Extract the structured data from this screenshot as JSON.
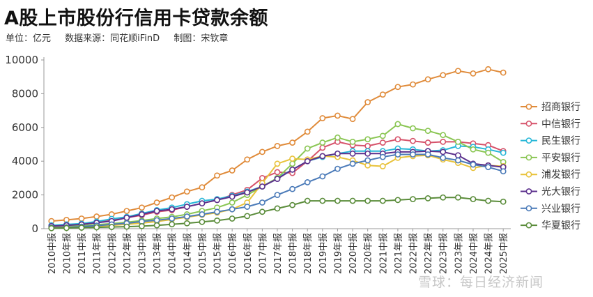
{
  "header": {
    "title": "A股上市股份行信用卡贷款余额",
    "unit": "单位：亿元",
    "source": "数据来源：同花顺iFinD",
    "author": "制图：宋钦章"
  },
  "watermark": "雪球：每日经济新闻",
  "chart_data": {
    "type": "line",
    "title": "A股上市股份行信用卡贷款余额",
    "xlabel": "",
    "ylabel": "",
    "ylim": [
      0,
      10000
    ],
    "yticks": [
      0,
      2000,
      4000,
      6000,
      8000,
      10000
    ],
    "grid": false,
    "legend_position": "right",
    "categories": [
      "2010中报",
      "2010年报",
      "2011中报",
      "2011年报",
      "2012中报",
      "2012年报",
      "2013中报",
      "2013年报",
      "2014中报",
      "2014年报",
      "2015中报",
      "2015年报",
      "2016中报",
      "2016年报",
      "2017中报",
      "2017年报",
      "2018中报",
      "2018年报",
      "2019中报",
      "2019年报",
      "2020中报",
      "2020年报",
      "2021中报",
      "2021年报",
      "2022中报",
      "2022年报",
      "2023中报",
      "2023年报",
      "2024中报",
      "2024年报",
      "2025中报"
    ],
    "series": [
      {
        "name": "招商银行",
        "color": "#e08b3a",
        "values": [
          450,
          520,
          600,
          720,
          850,
          1050,
          1250,
          1550,
          1850,
          2200,
          2450,
          3150,
          3450,
          4100,
          4550,
          4900,
          5100,
          5750,
          6550,
          6700,
          6500,
          7500,
          7950,
          8400,
          8550,
          8850,
          9100,
          9350,
          9200,
          9450,
          9250
        ]
      },
      {
        "name": "中信银行",
        "color": "#d6526a",
        "values": [
          150,
          200,
          260,
          360,
          500,
          650,
          800,
          1000,
          1100,
          1300,
          1500,
          1700,
          2000,
          2300,
          3000,
          3350,
          3300,
          4000,
          4800,
          5150,
          4950,
          4900,
          5100,
          5300,
          5200,
          5100,
          5150,
          5150,
          5050,
          4950,
          4600
        ]
      },
      {
        "name": "民生银行",
        "color": "#27b7d8",
        "values": [
          200,
          250,
          300,
          420,
          580,
          700,
          900,
          1100,
          1250,
          1450,
          1650,
          1750,
          1950,
          2200,
          2500,
          3000,
          3500,
          4000,
          4250,
          4450,
          4600,
          4600,
          4600,
          4750,
          4700,
          4600,
          4650,
          4900,
          4850,
          4700,
          4500
        ]
      },
      {
        "name": "平安银行",
        "color": "#8ac653",
        "values": [
          100,
          130,
          180,
          240,
          300,
          380,
          480,
          600,
          700,
          850,
          1050,
          1250,
          1550,
          2000,
          2500,
          3000,
          3850,
          4750,
          5100,
          5400,
          5150,
          5300,
          5500,
          6200,
          5950,
          5800,
          5550,
          5150,
          4700,
          4500,
          3950
        ]
      },
      {
        "name": "浦发银行",
        "color": "#e8c23a",
        "values": [
          80,
          90,
          110,
          150,
          200,
          260,
          330,
          420,
          550,
          680,
          820,
          950,
          1150,
          1550,
          2700,
          3850,
          4150,
          4100,
          4300,
          4250,
          4050,
          3750,
          3700,
          4200,
          4300,
          4350,
          4100,
          3900,
          3600,
          3750,
          3700
        ]
      },
      {
        "name": "光大银行",
        "color": "#5b2f8c",
        "values": [
          150,
          200,
          250,
          350,
          450,
          650,
          850,
          1050,
          1150,
          1300,
          1500,
          1700,
          1900,
          2150,
          2500,
          2950,
          3500,
          4000,
          4300,
          4450,
          4450,
          4450,
          4450,
          4550,
          4550,
          4600,
          4550,
          4350,
          3850,
          3750,
          3650
        ]
      },
      {
        "name": "兴业银行",
        "color": "#4a7ab8",
        "values": [
          50,
          80,
          120,
          180,
          250,
          320,
          420,
          500,
          600,
          720,
          850,
          1000,
          1150,
          1300,
          1550,
          2000,
          2350,
          2750,
          3100,
          3550,
          3850,
          4050,
          4250,
          4400,
          4400,
          4400,
          4200,
          4050,
          3800,
          3650,
          3400
        ]
      },
      {
        "name": "华夏银行",
        "color": "#5a8c3a",
        "values": [
          30,
          40,
          60,
          80,
          100,
          120,
          150,
          200,
          260,
          320,
          400,
          480,
          600,
          750,
          1000,
          1200,
          1400,
          1650,
          1650,
          1650,
          1650,
          1650,
          1650,
          1700,
          1750,
          1800,
          1850,
          1850,
          1750,
          1650,
          1600
        ]
      }
    ]
  }
}
